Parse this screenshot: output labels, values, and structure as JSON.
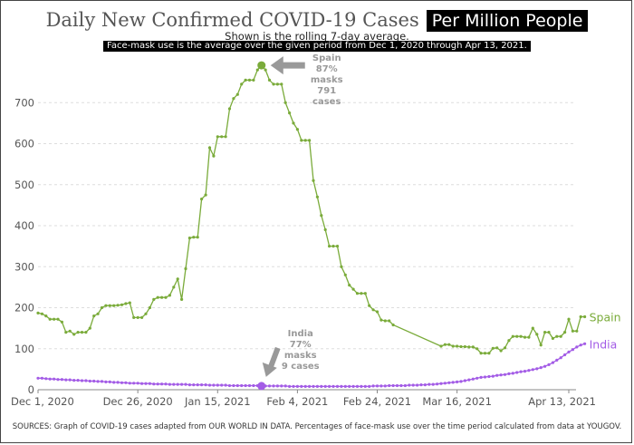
{
  "title": {
    "main": "Daily New Confirmed COVID-19 Cases",
    "boxed": "Per   Million People"
  },
  "subtitle": "Shown is the rolling 7-day average.",
  "note": "Face-mask use is the average over the given period from Dec 1, 2020 through Apr 13, 2021.",
  "source": "SOURCES: Graph of COVID-19 cases adapted from OUR WORLD IN DATA.  Percentages of face-mask use over the time period calculated from data at YOUGOV.",
  "colors": {
    "spain": "#7aab3a",
    "india": "#a35ce6",
    "grid": "#dddddd",
    "annotation": "#999999"
  },
  "chart_data": {
    "type": "line",
    "x_unit": "date",
    "x_ticks": [
      "Dec 1, 2020",
      "Dec 26, 2020",
      "Jan 15, 2021",
      "Feb 4, 2021",
      "Feb 24, 2021",
      "Mar 16, 2021",
      "Apr 13, 2021"
    ],
    "x_range": [
      "2020-12-01",
      "2021-04-13"
    ],
    "y_ticks": [
      "0",
      "100",
      "200",
      "300",
      "400",
      "500",
      "600",
      "700"
    ],
    "ylim": [
      0,
      800
    ],
    "grid": "horizontal dashed",
    "series": [
      {
        "name": "Spain",
        "color": "#7aab3a",
        "values": [
          [
            "2020-12-01",
            187
          ],
          [
            "2020-12-02",
            185
          ],
          [
            "2020-12-03",
            180
          ],
          [
            "2020-12-04",
            172
          ],
          [
            "2020-12-05",
            172
          ],
          [
            "2020-12-06",
            172
          ],
          [
            "2020-12-07",
            165
          ],
          [
            "2020-12-08",
            140
          ],
          [
            "2020-12-09",
            143
          ],
          [
            "2020-12-10",
            135
          ],
          [
            "2020-12-11",
            140
          ],
          [
            "2020-12-12",
            140
          ],
          [
            "2020-12-13",
            140
          ],
          [
            "2020-12-14",
            150
          ],
          [
            "2020-12-15",
            180
          ],
          [
            "2020-12-16",
            185
          ],
          [
            "2020-12-17",
            200
          ],
          [
            "2020-12-18",
            205
          ],
          [
            "2020-12-19",
            205
          ],
          [
            "2020-12-20",
            205
          ],
          [
            "2020-12-21",
            206
          ],
          [
            "2020-12-22",
            207
          ],
          [
            "2020-12-23",
            210
          ],
          [
            "2020-12-24",
            212
          ],
          [
            "2020-12-25",
            176
          ],
          [
            "2020-12-26",
            176
          ],
          [
            "2020-12-27",
            176
          ],
          [
            "2020-12-28",
            185
          ],
          [
            "2020-12-29",
            200
          ],
          [
            "2020-12-30",
            220
          ],
          [
            "2020-12-31",
            225
          ],
          [
            "2021-01-01",
            225
          ],
          [
            "2021-01-02",
            225
          ],
          [
            "2021-01-03",
            230
          ],
          [
            "2021-01-04",
            250
          ],
          [
            "2021-01-05",
            270
          ],
          [
            "2021-01-06",
            220
          ],
          [
            "2021-01-07",
            295
          ],
          [
            "2021-01-08",
            370
          ],
          [
            "2021-01-09",
            372
          ],
          [
            "2021-01-10",
            372
          ],
          [
            "2021-01-11",
            465
          ],
          [
            "2021-01-12",
            475
          ],
          [
            "2021-01-13",
            590
          ],
          [
            "2021-01-14",
            570
          ],
          [
            "2021-01-15",
            617
          ],
          [
            "2021-01-16",
            617
          ],
          [
            "2021-01-17",
            617
          ],
          [
            "2021-01-18",
            685
          ],
          [
            "2021-01-19",
            710
          ],
          [
            "2021-01-20",
            720
          ],
          [
            "2021-01-21",
            745
          ],
          [
            "2021-01-22",
            755
          ],
          [
            "2021-01-23",
            755
          ],
          [
            "2021-01-24",
            755
          ],
          [
            "2021-01-25",
            780
          ],
          [
            "2021-01-26",
            791
          ],
          [
            "2021-01-27",
            780
          ],
          [
            "2021-01-28",
            755
          ],
          [
            "2021-01-29",
            745
          ],
          [
            "2021-01-30",
            745
          ],
          [
            "2021-01-31",
            745
          ],
          [
            "2021-02-01",
            700
          ],
          [
            "2021-02-02",
            675
          ],
          [
            "2021-02-03",
            650
          ],
          [
            "2021-02-04",
            635
          ],
          [
            "2021-02-05",
            608
          ],
          [
            "2021-02-06",
            608
          ],
          [
            "2021-02-07",
            608
          ],
          [
            "2021-02-08",
            510
          ],
          [
            "2021-02-09",
            470
          ],
          [
            "2021-02-10",
            425
          ],
          [
            "2021-02-11",
            390
          ],
          [
            "2021-02-12",
            350
          ],
          [
            "2021-02-13",
            350
          ],
          [
            "2021-02-14",
            350
          ],
          [
            "2021-02-15",
            300
          ],
          [
            "2021-02-16",
            280
          ],
          [
            "2021-02-17",
            255
          ],
          [
            "2021-02-18",
            245
          ],
          [
            "2021-02-19",
            235
          ],
          [
            "2021-02-20",
            235
          ],
          [
            "2021-02-21",
            235
          ],
          [
            "2021-02-22",
            205
          ],
          [
            "2021-02-23",
            195
          ],
          [
            "2021-02-24",
            190
          ],
          [
            "2021-02-25",
            170
          ],
          [
            "2021-02-26",
            168
          ],
          [
            "2021-02-27",
            168
          ],
          [
            "2021-02-28",
            158
          ],
          [
            "2021-03-12",
            106
          ],
          [
            "2021-03-13",
            110
          ],
          [
            "2021-03-14",
            110
          ],
          [
            "2021-03-15",
            106
          ],
          [
            "2021-03-16",
            106
          ],
          [
            "2021-03-17",
            105
          ],
          [
            "2021-03-18",
            105
          ],
          [
            "2021-03-19",
            104
          ],
          [
            "2021-03-20",
            104
          ],
          [
            "2021-03-21",
            100
          ],
          [
            "2021-03-22",
            89
          ],
          [
            "2021-03-23",
            89
          ],
          [
            "2021-03-24",
            89
          ],
          [
            "2021-03-25",
            101
          ],
          [
            "2021-03-26",
            102
          ],
          [
            "2021-03-27",
            95
          ],
          [
            "2021-03-28",
            102
          ],
          [
            "2021-03-29",
            120
          ],
          [
            "2021-03-30",
            130
          ],
          [
            "2021-03-31",
            130
          ],
          [
            "2021-04-01",
            130
          ],
          [
            "2021-04-02",
            128
          ],
          [
            "2021-04-03",
            128
          ],
          [
            "2021-04-04",
            150
          ],
          [
            "2021-04-05",
            135
          ],
          [
            "2021-04-06",
            109
          ],
          [
            "2021-04-07",
            140
          ],
          [
            "2021-04-08",
            140
          ],
          [
            "2021-04-09",
            125
          ],
          [
            "2021-04-10",
            130
          ],
          [
            "2021-04-11",
            130
          ],
          [
            "2021-04-12",
            140
          ],
          [
            "2021-04-13",
            172
          ],
          [
            "2021-04-14",
            143
          ],
          [
            "2021-04-15",
            143
          ],
          [
            "2021-04-16",
            178
          ],
          [
            "2021-04-17",
            178
          ]
        ],
        "annotation": {
          "date": "2021-01-26",
          "value": 791,
          "lines": [
            "Spain",
            "87%",
            "masks",
            "791",
            "cases"
          ]
        }
      },
      {
        "name": "India",
        "color": "#a35ce6",
        "values": [
          [
            "2020-12-01",
            28
          ],
          [
            "2020-12-02",
            28
          ],
          [
            "2020-12-03",
            27
          ],
          [
            "2020-12-04",
            26
          ],
          [
            "2020-12-05",
            26
          ],
          [
            "2020-12-06",
            25
          ],
          [
            "2020-12-07",
            25
          ],
          [
            "2020-12-08",
            24
          ],
          [
            "2020-12-09",
            24
          ],
          [
            "2020-12-10",
            23
          ],
          [
            "2020-12-11",
            23
          ],
          [
            "2020-12-12",
            22
          ],
          [
            "2020-12-13",
            22
          ],
          [
            "2020-12-14",
            21
          ],
          [
            "2020-12-15",
            21
          ],
          [
            "2020-12-16",
            20
          ],
          [
            "2020-12-17",
            20
          ],
          [
            "2020-12-18",
            19
          ],
          [
            "2020-12-19",
            19
          ],
          [
            "2020-12-20",
            18
          ],
          [
            "2020-12-21",
            18
          ],
          [
            "2020-12-22",
            17
          ],
          [
            "2020-12-23",
            17
          ],
          [
            "2020-12-24",
            16
          ],
          [
            "2020-12-25",
            16
          ],
          [
            "2020-12-26",
            16
          ],
          [
            "2020-12-27",
            15
          ],
          [
            "2020-12-28",
            15
          ],
          [
            "2020-12-29",
            15
          ],
          [
            "2020-12-30",
            14
          ],
          [
            "2020-12-31",
            14
          ],
          [
            "2021-01-01",
            14
          ],
          [
            "2021-01-02",
            14
          ],
          [
            "2021-01-03",
            13
          ],
          [
            "2021-01-04",
            13
          ],
          [
            "2021-01-05",
            13
          ],
          [
            "2021-01-06",
            13
          ],
          [
            "2021-01-07",
            13
          ],
          [
            "2021-01-08",
            12
          ],
          [
            "2021-01-09",
            12
          ],
          [
            "2021-01-10",
            12
          ],
          [
            "2021-01-11",
            12
          ],
          [
            "2021-01-12",
            12
          ],
          [
            "2021-01-13",
            11
          ],
          [
            "2021-01-14",
            11
          ],
          [
            "2021-01-15",
            11
          ],
          [
            "2021-01-16",
            11
          ],
          [
            "2021-01-17",
            11
          ],
          [
            "2021-01-18",
            10
          ],
          [
            "2021-01-19",
            10
          ],
          [
            "2021-01-20",
            10
          ],
          [
            "2021-01-21",
            10
          ],
          [
            "2021-01-22",
            10
          ],
          [
            "2021-01-23",
            10
          ],
          [
            "2021-01-24",
            10
          ],
          [
            "2021-01-25",
            10
          ],
          [
            "2021-01-26",
            9
          ],
          [
            "2021-01-27",
            9
          ],
          [
            "2021-01-28",
            9
          ],
          [
            "2021-01-29",
            9
          ],
          [
            "2021-01-30",
            9
          ],
          [
            "2021-01-31",
            9
          ],
          [
            "2021-02-01",
            9
          ],
          [
            "2021-02-02",
            8
          ],
          [
            "2021-02-03",
            8
          ],
          [
            "2021-02-04",
            8
          ],
          [
            "2021-02-05",
            8
          ],
          [
            "2021-02-06",
            8
          ],
          [
            "2021-02-07",
            8
          ],
          [
            "2021-02-08",
            8
          ],
          [
            "2021-02-09",
            8
          ],
          [
            "2021-02-10",
            8
          ],
          [
            "2021-02-11",
            8
          ],
          [
            "2021-02-12",
            8
          ],
          [
            "2021-02-13",
            8
          ],
          [
            "2021-02-14",
            8
          ],
          [
            "2021-02-15",
            8
          ],
          [
            "2021-02-16",
            8
          ],
          [
            "2021-02-17",
            8
          ],
          [
            "2021-02-18",
            8
          ],
          [
            "2021-02-19",
            8
          ],
          [
            "2021-02-20",
            8
          ],
          [
            "2021-02-21",
            8
          ],
          [
            "2021-02-22",
            8
          ],
          [
            "2021-02-23",
            9
          ],
          [
            "2021-02-24",
            9
          ],
          [
            "2021-02-25",
            9
          ],
          [
            "2021-02-26",
            9
          ],
          [
            "2021-02-27",
            10
          ],
          [
            "2021-02-28",
            10
          ],
          [
            "2021-03-01",
            10
          ],
          [
            "2021-03-02",
            10
          ],
          [
            "2021-03-03",
            10
          ],
          [
            "2021-03-04",
            11
          ],
          [
            "2021-03-05",
            11
          ],
          [
            "2021-03-06",
            11
          ],
          [
            "2021-03-07",
            12
          ],
          [
            "2021-03-08",
            12
          ],
          [
            "2021-03-09",
            13
          ],
          [
            "2021-03-10",
            13
          ],
          [
            "2021-03-11",
            14
          ],
          [
            "2021-03-12",
            15
          ],
          [
            "2021-03-13",
            16
          ],
          [
            "2021-03-14",
            17
          ],
          [
            "2021-03-15",
            18
          ],
          [
            "2021-03-16",
            19
          ],
          [
            "2021-03-17",
            20
          ],
          [
            "2021-03-18",
            22
          ],
          [
            "2021-03-19",
            24
          ],
          [
            "2021-03-20",
            26
          ],
          [
            "2021-03-21",
            28
          ],
          [
            "2021-03-22",
            30
          ],
          [
            "2021-03-23",
            31
          ],
          [
            "2021-03-24",
            32
          ],
          [
            "2021-03-25",
            33
          ],
          [
            "2021-03-26",
            35
          ],
          [
            "2021-03-27",
            36
          ],
          [
            "2021-03-28",
            37
          ],
          [
            "2021-03-29",
            39
          ],
          [
            "2021-03-30",
            40
          ],
          [
            "2021-03-31",
            42
          ],
          [
            "2021-04-01",
            44
          ],
          [
            "2021-04-02",
            45
          ],
          [
            "2021-04-03",
            47
          ],
          [
            "2021-04-04",
            49
          ],
          [
            "2021-04-05",
            51
          ],
          [
            "2021-04-06",
            54
          ],
          [
            "2021-04-07",
            57
          ],
          [
            "2021-04-08",
            61
          ],
          [
            "2021-04-09",
            66
          ],
          [
            "2021-04-10",
            72
          ],
          [
            "2021-04-11",
            78
          ],
          [
            "2021-04-12",
            85
          ],
          [
            "2021-04-13",
            92
          ],
          [
            "2021-04-14",
            98
          ],
          [
            "2021-04-15",
            104
          ],
          [
            "2021-04-16",
            109
          ],
          [
            "2021-04-17",
            112
          ]
        ],
        "annotation": {
          "date": "2021-01-26",
          "value": 9,
          "lines": [
            "India",
            "77%",
            "masks",
            "9 cases"
          ]
        }
      }
    ]
  }
}
